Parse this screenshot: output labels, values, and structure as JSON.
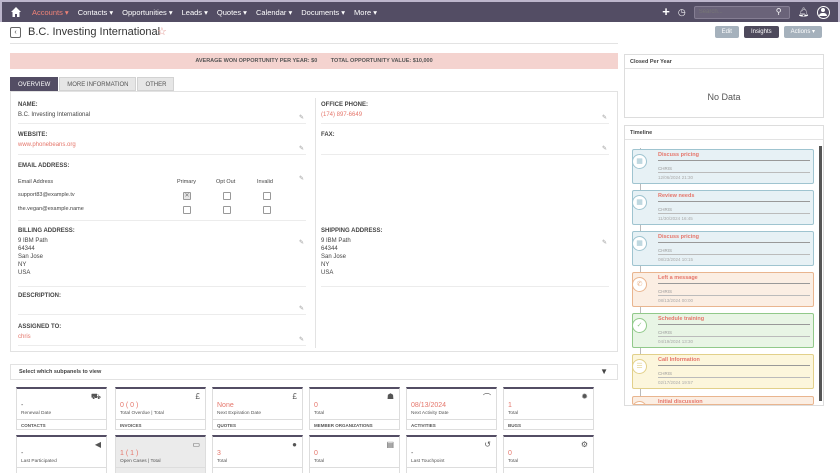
{
  "nav": {
    "items": [
      "Accounts ▾",
      "Contacts ▾",
      "Opportunities ▾",
      "Leads ▾",
      "Quotes ▾",
      "Calendar ▾",
      "Documents ▾",
      "More ▾"
    ],
    "search_placeholder": "Search..."
  },
  "header": {
    "title": "B.C. Investing International",
    "buttons": [
      "Edit",
      "Insights",
      "Actions ▾"
    ]
  },
  "banner": {
    "avg_label": "AVERAGE WON OPPORTUNITY PER YEAR:",
    "avg_value": "$0",
    "total_label": "TOTAL OPPORTUNITY VALUE:",
    "total_value": "$10,000"
  },
  "tabs": [
    "OVERVIEW",
    "MORE INFORMATION",
    "OTHER"
  ],
  "fields": {
    "name": {
      "label": "NAME:",
      "value": "B.C. Investing International"
    },
    "office_phone": {
      "label": "OFFICE PHONE:",
      "value": "(174) 897-6649"
    },
    "website": {
      "label": "WEBSITE:",
      "value": "www.phonebeans.org"
    },
    "fax": {
      "label": "FAX:",
      "value": ""
    },
    "email": {
      "label": "EMAIL ADDRESS:",
      "col_address": "Email Address",
      "col_primary": "Primary",
      "col_optout": "Opt Out",
      "col_invalid": "Invalid",
      "rows": [
        "support83@example.tv",
        "the.vegan@example.name"
      ]
    },
    "billing": {
      "label": "BILLING ADDRESS:",
      "lines": [
        "9 IBM Path",
        "64344",
        "San Jose",
        "NY",
        "USA"
      ]
    },
    "shipping": {
      "label": "SHIPPING ADDRESS:",
      "lines": [
        "9 IBM Path",
        "64344",
        "San Jose",
        "NY",
        "USA"
      ]
    },
    "description": {
      "label": "DESCRIPTION:",
      "value": ""
    },
    "assigned": {
      "label": "ASSIGNED TO:",
      "value": "chris"
    }
  },
  "subpanels": {
    "title": "Select which subpanels to view",
    "tiles": [
      {
        "value": "-",
        "label": "Renewal Date",
        "footer": "CONTACTS",
        "icon": "⛟"
      },
      {
        "value": "0 ( 0 )",
        "label": "Total Overdue | Total",
        "footer": "INVOICES",
        "icon": "£"
      },
      {
        "value": "None",
        "label": "Next Expiration Date",
        "footer": "QUOTES",
        "icon": "£"
      },
      {
        "value": "0",
        "label": "Total",
        "footer": "MEMBER ORGANIZATIONS",
        "icon": "☗"
      },
      {
        "value": "08/13/2024",
        "label": "Next Activity Date",
        "footer": "ACTIVITIES",
        "icon": "⌒"
      },
      {
        "value": "1",
        "label": "Total",
        "footer": "BUGS",
        "icon": "✹"
      },
      {
        "value": "-",
        "label": "Last Participated",
        "footer": "",
        "icon": "◀"
      },
      {
        "value": "1 ( 1 )",
        "label": "Open Cases | Total",
        "footer": "",
        "icon": "▭"
      },
      {
        "value": "3",
        "label": "Total",
        "footer": "",
        "icon": "●"
      },
      {
        "value": "0",
        "label": "Total",
        "footer": "",
        "icon": "▤"
      },
      {
        "value": "-",
        "label": "Last Touchpoint",
        "footer": "",
        "icon": "↺"
      },
      {
        "value": "0",
        "label": "Total",
        "footer": "",
        "icon": "⚙"
      }
    ]
  },
  "closed_panel": {
    "title": "Closed Per Year",
    "empty": "No Data"
  },
  "timeline": {
    "title": "Timeline",
    "items": [
      {
        "title": "Discuss pricing",
        "user": "CHRIS",
        "date": "12/06/2024 21:30",
        "bg": "#e7f1f5",
        "border": "#9fc4d0",
        "icon": "▦"
      },
      {
        "title": "Review needs",
        "user": "CHRIS",
        "date": "11/30/2024 16:45",
        "bg": "#e7f1f5",
        "border": "#9fc4d0",
        "icon": "▦"
      },
      {
        "title": "Discuss pricing",
        "user": "CHRIS",
        "date": "08/23/2024 10:15",
        "bg": "#e7f1f5",
        "border": "#9fc4d0",
        "icon": "▦"
      },
      {
        "title": "Left a message",
        "user": "CHRIS",
        "date": "08/13/2024 00:00",
        "bg": "#fbeee3",
        "border": "#e9b58f",
        "icon": "✆"
      },
      {
        "title": "Schedule training",
        "user": "CHRIS",
        "date": "04/19/2024 13:30",
        "bg": "#e8f5e5",
        "border": "#91c98a",
        "icon": "✓"
      },
      {
        "title": "Call Information",
        "user": "CHRIS",
        "date": "02/17/2024 19:57",
        "bg": "#fcf6dc",
        "border": "#e2d08a",
        "icon": "☰"
      },
      {
        "title": "Initial discussion",
        "user": "",
        "date": "",
        "bg": "#fbeee3",
        "border": "#e9b58f",
        "icon": ""
      }
    ]
  }
}
